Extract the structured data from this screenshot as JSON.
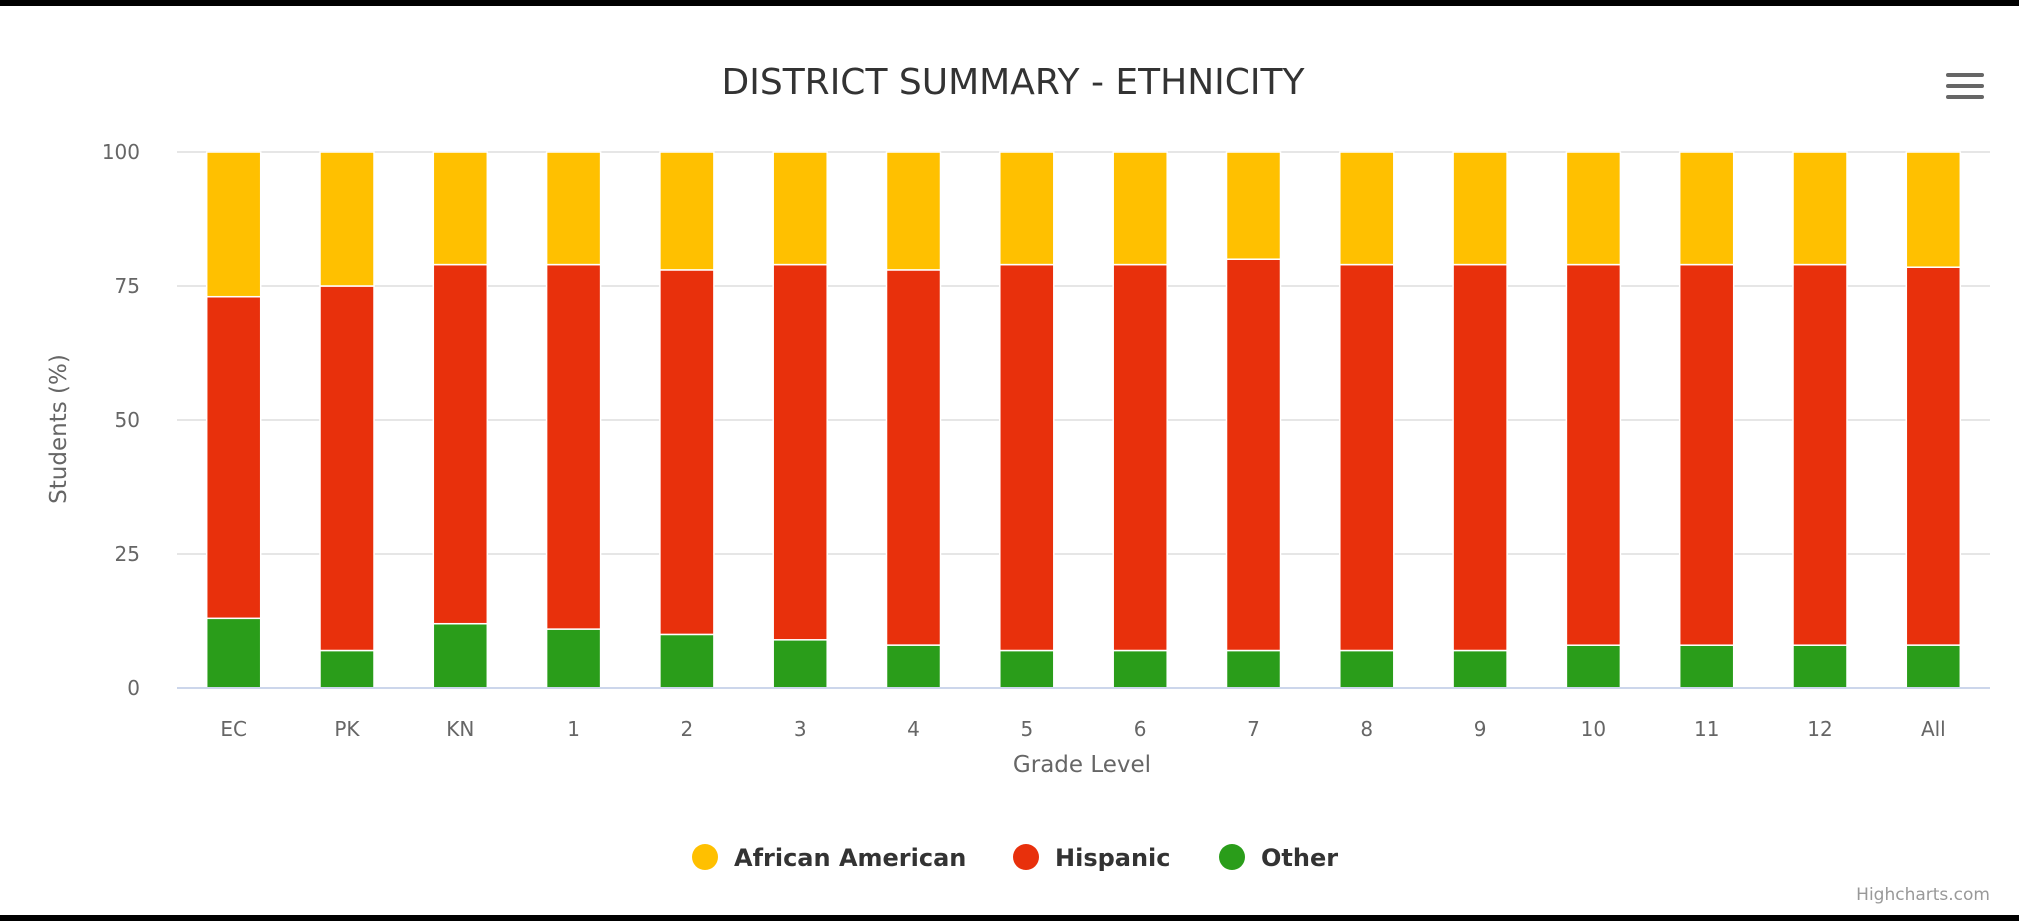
{
  "chart_data": {
    "type": "bar",
    "stacked": true,
    "title": "DISTRICT SUMMARY - ETHNICITY",
    "xlabel": "Grade Level",
    "ylabel": "Students (%)",
    "ylim": [
      0,
      100
    ],
    "yticks": [
      "0",
      "25",
      "50",
      "75",
      "100"
    ],
    "categories": [
      "EC",
      "PK",
      "KN",
      "1",
      "2",
      "3",
      "4",
      "5",
      "6",
      "7",
      "8",
      "9",
      "10",
      "11",
      "12",
      "All"
    ],
    "series": [
      {
        "name": "Other",
        "color": "#2a9d1a",
        "values": [
          13,
          7,
          12,
          11,
          10,
          9,
          8,
          7,
          7,
          7,
          7,
          7,
          8,
          8,
          8,
          8
        ]
      },
      {
        "name": "Hispanic",
        "color": "#e8300c",
        "values": [
          60,
          68,
          67,
          68,
          68,
          70,
          70,
          72,
          72,
          73,
          72,
          72,
          71,
          71,
          71,
          70.5
        ]
      },
      {
        "name": "African American",
        "color": "#ffc000",
        "values": [
          27,
          25,
          21,
          21,
          22,
          21,
          22,
          21,
          21,
          20,
          21,
          21,
          21,
          21,
          21,
          21.5
        ]
      }
    ],
    "legend": {
      "position": "bottom",
      "order": [
        "African American",
        "Hispanic",
        "Other"
      ]
    },
    "grid": true
  },
  "credits": "Highcharts.com",
  "menu_icon": "hamburger-menu-icon"
}
